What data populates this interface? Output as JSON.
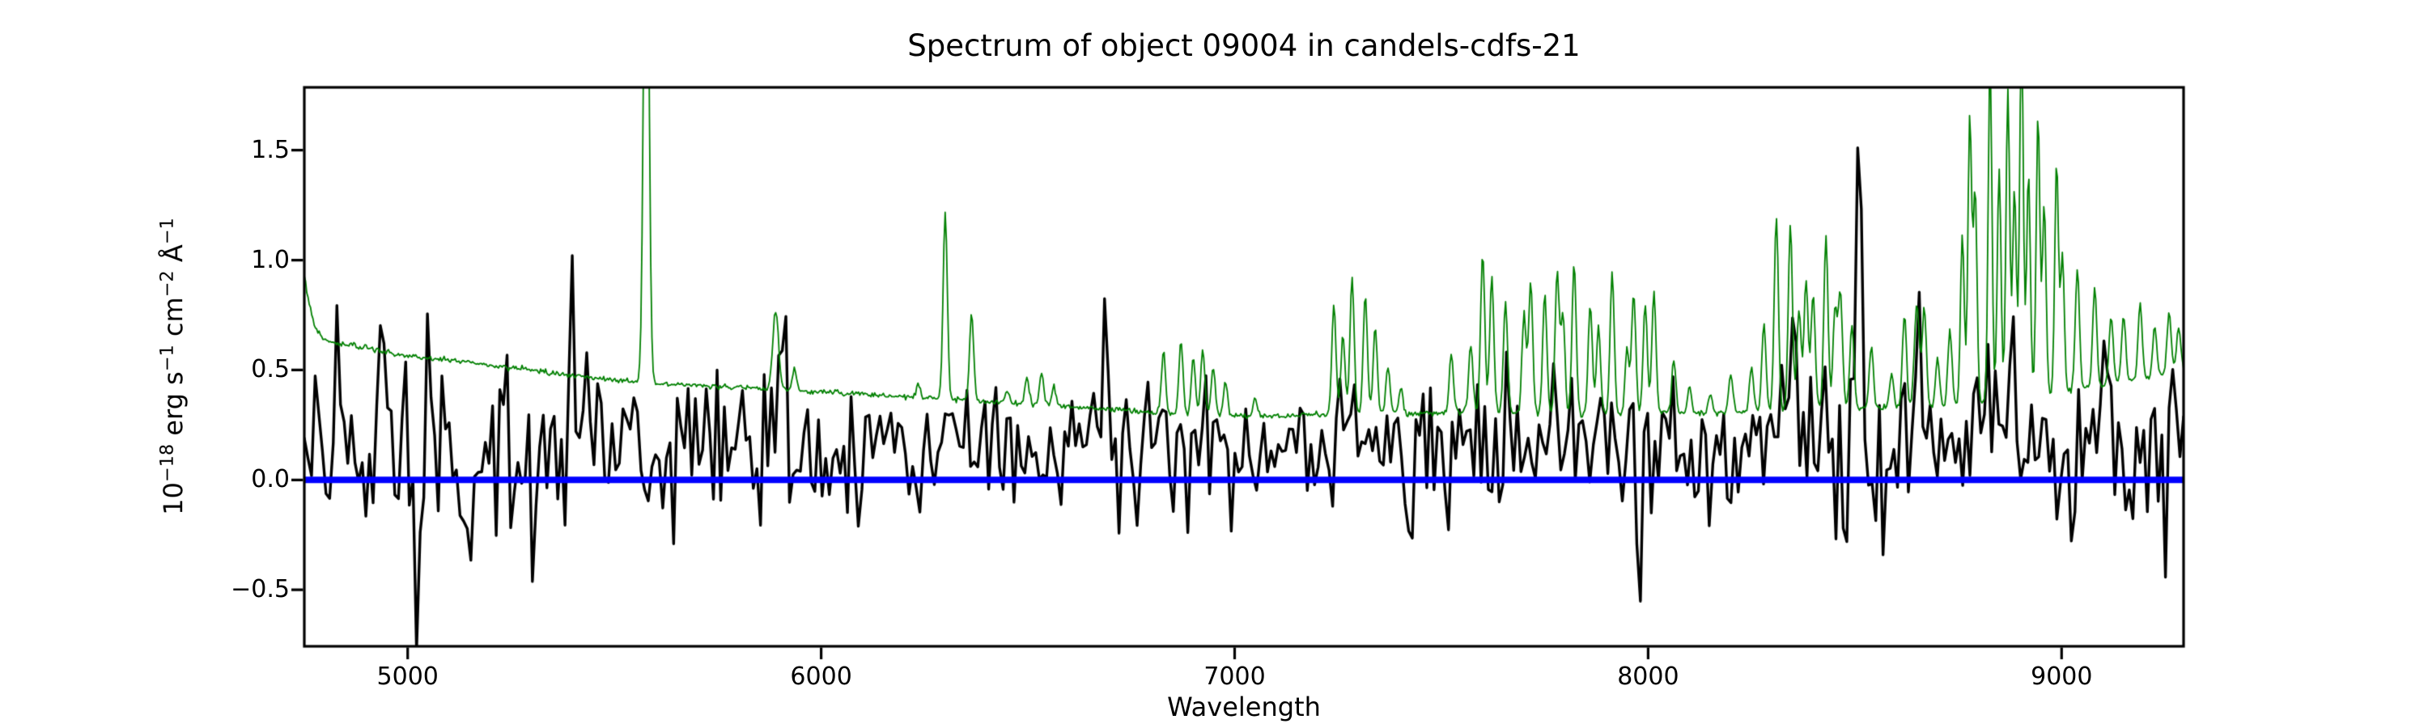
{
  "figure": {
    "object_id": "09004",
    "field": "candels-cdfs-21",
    "background_color": "#ffffff",
    "text_color": "#000000"
  },
  "chart_data": {
    "type": "line",
    "title": "Spectrum of object 09004 in candels-cdfs-21",
    "xlabel": "Wavelength",
    "ylabel": "10^{−18} erg s^{−1} cm^{−2} Å^{−1}",
    "xlim": [
      4750,
      9295
    ],
    "ylim": [
      -0.757,
      1.786
    ],
    "grid": false,
    "legend": null,
    "xticks": {
      "values": [
        5000,
        6000,
        7000,
        8000,
        9000
      ],
      "labels": [
        "5000",
        "6000",
        "7000",
        "8000",
        "9000"
      ]
    },
    "yticks": {
      "values": [
        1.5,
        1.0,
        0.5,
        0.0,
        -0.5
      ],
      "labels": [
        "1.5",
        "1.0",
        "0.5",
        "0.0",
        "−0.5"
      ]
    },
    "series": [
      {
        "name": "flux-spectrum",
        "color": "#000000",
        "linewidth": 3.4,
        "render": "noisy-line",
        "n_samples": 520,
        "noise_seed": 20817,
        "mean_envelope": [
          [
            4750,
            0.17
          ],
          [
            5200,
            0.16
          ],
          [
            5700,
            0.16
          ],
          [
            6200,
            0.14
          ],
          [
            6700,
            0.13
          ],
          [
            7200,
            0.14
          ],
          [
            7700,
            0.15
          ],
          [
            8200,
            0.16
          ],
          [
            8700,
            0.17
          ],
          [
            9000,
            0.16
          ],
          [
            9295,
            0.13
          ]
        ],
        "amplitude_envelope": [
          [
            4750,
            0.21
          ],
          [
            5200,
            0.2
          ],
          [
            5700,
            0.18
          ],
          [
            6200,
            0.16
          ],
          [
            6700,
            0.14
          ],
          [
            7200,
            0.15
          ],
          [
            7700,
            0.17
          ],
          [
            8200,
            0.19
          ],
          [
            8700,
            0.21
          ],
          [
            9000,
            0.2
          ],
          [
            9295,
            0.18
          ]
        ],
        "features": [
          [
            5020,
            -0.8,
            5
          ],
          [
            5045,
            0.58,
            5
          ],
          [
            5150,
            -0.45,
            5
          ],
          [
            5305,
            -0.55,
            5
          ],
          [
            5400,
            0.52,
            5
          ],
          [
            5480,
            -0.62,
            5
          ],
          [
            5910,
            0.4,
            6
          ],
          [
            6315,
            0.46,
            6
          ],
          [
            6690,
            0.5,
            6
          ],
          [
            6760,
            -0.48,
            5
          ],
          [
            7258,
            0.45,
            6
          ],
          [
            7770,
            0.62,
            6
          ],
          [
            7980,
            -0.68,
            5
          ],
          [
            8350,
            0.55,
            6
          ],
          [
            8510,
            1.47,
            6
          ],
          [
            8655,
            0.5,
            6
          ],
          [
            8880,
            0.6,
            6
          ],
          [
            9105,
            0.6,
            6
          ],
          [
            9250,
            -0.52,
            5
          ]
        ]
      },
      {
        "name": "noise-spectrum",
        "color": "#008000",
        "linewidth": 1.8,
        "render": "sky-line",
        "n_samples": 1520,
        "noise_seed": 4242,
        "wiggle": 0.006,
        "continuum": [
          [
            4750,
            0.93
          ],
          [
            4762,
            0.8
          ],
          [
            4775,
            0.7
          ],
          [
            4800,
            0.63
          ],
          [
            4900,
            0.6
          ],
          [
            5000,
            0.565
          ],
          [
            5100,
            0.545
          ],
          [
            5200,
            0.52
          ],
          [
            5300,
            0.5
          ],
          [
            5400,
            0.475
          ],
          [
            5500,
            0.455
          ],
          [
            5600,
            0.44
          ],
          [
            5700,
            0.43
          ],
          [
            5800,
            0.42
          ],
          [
            5900,
            0.41
          ],
          [
            6000,
            0.4
          ],
          [
            6100,
            0.39
          ],
          [
            6200,
            0.38
          ],
          [
            6300,
            0.37
          ],
          [
            6400,
            0.355
          ],
          [
            6500,
            0.345
          ],
          [
            6600,
            0.335
          ],
          [
            6700,
            0.32
          ],
          [
            6800,
            0.305
          ],
          [
            6900,
            0.295
          ],
          [
            7000,
            0.29
          ],
          [
            7100,
            0.29
          ],
          [
            7200,
            0.295
          ],
          [
            7300,
            0.3
          ],
          [
            7400,
            0.3
          ],
          [
            7500,
            0.305
          ],
          [
            7600,
            0.31
          ],
          [
            7700,
            0.3
          ],
          [
            7800,
            0.295
          ],
          [
            7900,
            0.295
          ],
          [
            8000,
            0.3
          ],
          [
            8100,
            0.3
          ],
          [
            8200,
            0.305
          ],
          [
            8300,
            0.315
          ],
          [
            8400,
            0.325
          ],
          [
            8500,
            0.33
          ],
          [
            8600,
            0.33
          ],
          [
            8700,
            0.33
          ],
          [
            8800,
            0.345
          ],
          [
            8900,
            0.36
          ],
          [
            9000,
            0.4
          ],
          [
            9100,
            0.43
          ],
          [
            9200,
            0.46
          ],
          [
            9295,
            0.5
          ]
        ],
        "emission_lines": [
          [
            5577,
            2.8,
            6
          ],
          [
            5890,
            0.36,
            7
          ],
          [
            5935,
            0.1,
            5
          ],
          [
            6235,
            0.05,
            5
          ],
          [
            6300,
            0.85,
            5
          ],
          [
            6364,
            0.4,
            5
          ],
          [
            6450,
            0.05,
            5
          ],
          [
            6498,
            0.12,
            5
          ],
          [
            6533,
            0.15,
            5
          ],
          [
            6563,
            0.08,
            5
          ],
          [
            6828,
            0.28,
            5
          ],
          [
            6870,
            0.33,
            5
          ],
          [
            6900,
            0.26,
            5
          ],
          [
            6923,
            0.29,
            5
          ],
          [
            6948,
            0.22,
            5
          ],
          [
            6978,
            0.15,
            5
          ],
          [
            7050,
            0.08,
            5
          ],
          [
            7240,
            0.5,
            5
          ],
          [
            7262,
            0.36,
            5
          ],
          [
            7284,
            0.63,
            5
          ],
          [
            7316,
            0.55,
            5
          ],
          [
            7340,
            0.4,
            5
          ],
          [
            7371,
            0.21,
            5
          ],
          [
            7402,
            0.12,
            5
          ],
          [
            7524,
            0.26,
            5
          ],
          [
            7571,
            0.31,
            5
          ],
          [
            7600,
            0.73,
            5
          ],
          [
            7622,
            0.62,
            5
          ],
          [
            7655,
            0.5,
            5
          ],
          [
            7700,
            0.45,
            5
          ],
          [
            7716,
            0.6,
            5
          ],
          [
            7750,
            0.55,
            5
          ],
          [
            7780,
            0.65,
            5
          ],
          [
            7794,
            0.45,
            5
          ],
          [
            7821,
            0.7,
            5
          ],
          [
            7860,
            0.5,
            5
          ],
          [
            7880,
            0.4,
            5
          ],
          [
            7913,
            0.65,
            5
          ],
          [
            7949,
            0.3,
            5
          ],
          [
            7965,
            0.55,
            5
          ],
          [
            7993,
            0.5,
            5
          ],
          [
            8014,
            0.55,
            5
          ],
          [
            8062,
            0.25,
            5
          ],
          [
            8100,
            0.12,
            5
          ],
          [
            8150,
            0.08,
            5
          ],
          [
            8200,
            0.18,
            5
          ],
          [
            8250,
            0.2,
            5
          ],
          [
            8280,
            0.4,
            5
          ],
          [
            8310,
            0.88,
            5
          ],
          [
            8344,
            0.84,
            5
          ],
          [
            8365,
            0.45,
            5
          ],
          [
            8382,
            0.58,
            5
          ],
          [
            8399,
            0.52,
            5
          ],
          [
            8430,
            0.78,
            5
          ],
          [
            8452,
            0.45,
            5
          ],
          [
            8465,
            0.52,
            5
          ],
          [
            8493,
            0.38,
            5
          ],
          [
            8540,
            0.28,
            5
          ],
          [
            8589,
            0.15,
            5
          ],
          [
            8620,
            0.42,
            5
          ],
          [
            8650,
            0.47,
            6
          ],
          [
            8668,
            0.45,
            5
          ],
          [
            8700,
            0.22,
            5
          ],
          [
            8730,
            0.35,
            5
          ],
          [
            8760,
            0.78,
            4.5
          ],
          [
            8778,
            1.32,
            4.5
          ],
          [
            8791,
            0.97,
            4.5
          ],
          [
            8827,
            1.55,
            4.5
          ],
          [
            8849,
            1.07,
            4.5
          ],
          [
            8870,
            1.42,
            4.5
          ],
          [
            8886,
            0.97,
            4.5
          ],
          [
            8903,
            1.67,
            4.5
          ],
          [
            8920,
            1.02,
            4.5
          ],
          [
            8943,
            1.28,
            4.5
          ],
          [
            8958,
            0.87,
            4.5
          ],
          [
            8988,
            1.05,
            4.5
          ],
          [
            9002,
            0.62,
            4.5
          ],
          [
            9038,
            0.55,
            5
          ],
          [
            9080,
            0.45,
            5
          ],
          [
            9120,
            0.3,
            5
          ],
          [
            9150,
            0.3,
            5
          ],
          [
            9190,
            0.35,
            5
          ],
          [
            9225,
            0.22,
            5
          ],
          [
            9260,
            0.28,
            5
          ],
          [
            9283,
            0.2,
            5
          ]
        ]
      },
      {
        "name": "zero-line",
        "color": "#0000ff",
        "linewidth": 8,
        "render": "hline",
        "y": 0.0
      }
    ]
  }
}
